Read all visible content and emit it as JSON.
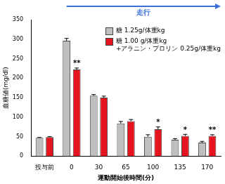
{
  "chart_data": {
    "type": "bar",
    "x_label": "運動開始後時間(分)",
    "y_label": "血糖値(mg/dl)",
    "arrow_text": "走行",
    "categories": [
      "投与前",
      "0",
      "30",
      "65",
      "100",
      "135",
      "170"
    ],
    "series": [
      {
        "name": "糖 1.25g/体重kg",
        "color": "#bfbfbf",
        "values": [
          47,
          296,
          155,
          84,
          50,
          42,
          35
        ],
        "errors": [
          1,
          6,
          3,
          5,
          5,
          3,
          3
        ]
      },
      {
        "name": "糖 1.00 g/体重kg +アラニン・プロリン 0.25g/体重kg",
        "color": "#e6141e",
        "values": [
          49,
          222,
          150,
          90,
          69,
          52,
          52
        ],
        "errors": [
          1,
          4,
          4,
          4,
          6,
          4,
          3
        ]
      }
    ],
    "ylim": [
      0,
      350
    ],
    "yticks": [
      0,
      50,
      100,
      150,
      200,
      250,
      300,
      350
    ],
    "grid": false,
    "legend": "upper right",
    "annotations": [
      {
        "category": "0",
        "series": 1,
        "text": "**"
      },
      {
        "category": "100",
        "series": 1,
        "text": "*"
      },
      {
        "category": "135",
        "series": 1,
        "text": "*"
      },
      {
        "category": "170",
        "series": 1,
        "text": "**"
      }
    ]
  }
}
